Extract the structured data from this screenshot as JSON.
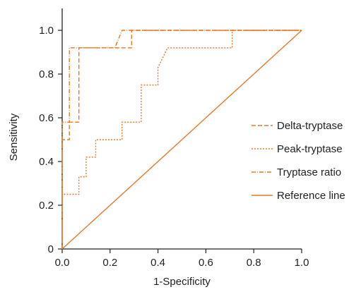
{
  "chart_data": {
    "type": "line",
    "title": "",
    "xlabel": "1-Specificity",
    "ylabel": "Sensitivity",
    "xlim": [
      0,
      1
    ],
    "ylim": [
      0,
      1.1
    ],
    "x_ticks": [
      0.0,
      0.2,
      0.4,
      0.6,
      0.8,
      1.0
    ],
    "y_ticks": [
      0,
      0.2,
      0.4,
      0.6,
      0.8,
      1.0
    ],
    "x_tick_labels": [
      "0.0",
      "0.2",
      "0.4",
      "0.6",
      "0.8",
      "1.0"
    ],
    "y_tick_labels": [
      "0",
      "0.2",
      "0.4",
      "0.6",
      "0.8",
      "1.0"
    ],
    "grid": false,
    "legend_position": "right",
    "color": "#E8782A",
    "series": [
      {
        "name": "Delta-tryptase",
        "dash": "6,3",
        "points": [
          [
            0,
            0
          ],
          [
            0,
            0.5
          ],
          [
            0.03,
            0.5
          ],
          [
            0.03,
            0.58
          ],
          [
            0.07,
            0.58
          ],
          [
            0.07,
            0.92
          ],
          [
            0.29,
            0.92
          ],
          [
            0.29,
            1.0
          ],
          [
            1.0,
            1.0
          ]
        ]
      },
      {
        "name": "Peak-tryptase",
        "dash": "2,2",
        "points": [
          [
            0,
            0
          ],
          [
            0,
            0.25
          ],
          [
            0.07,
            0.25
          ],
          [
            0.07,
            0.33
          ],
          [
            0.1,
            0.33
          ],
          [
            0.1,
            0.42
          ],
          [
            0.14,
            0.42
          ],
          [
            0.14,
            0.5
          ],
          [
            0.25,
            0.5
          ],
          [
            0.25,
            0.58
          ],
          [
            0.33,
            0.58
          ],
          [
            0.33,
            0.75
          ],
          [
            0.4,
            0.75
          ],
          [
            0.4,
            0.83
          ],
          [
            0.44,
            0.92
          ],
          [
            0.71,
            0.92
          ],
          [
            0.71,
            1.0
          ],
          [
            1.0,
            1.0
          ]
        ]
      },
      {
        "name": "Tryptase ratio",
        "dash": "6,2,1,2",
        "points": [
          [
            0,
            0
          ],
          [
            0,
            0.58
          ],
          [
            0.03,
            0.58
          ],
          [
            0.03,
            0.92
          ],
          [
            0.22,
            0.92
          ],
          [
            0.25,
            1.0
          ],
          [
            1.0,
            1.0
          ]
        ]
      },
      {
        "name": "Reference line",
        "dash": "",
        "points": [
          [
            0,
            0
          ],
          [
            1.0,
            1.0
          ]
        ]
      }
    ]
  }
}
